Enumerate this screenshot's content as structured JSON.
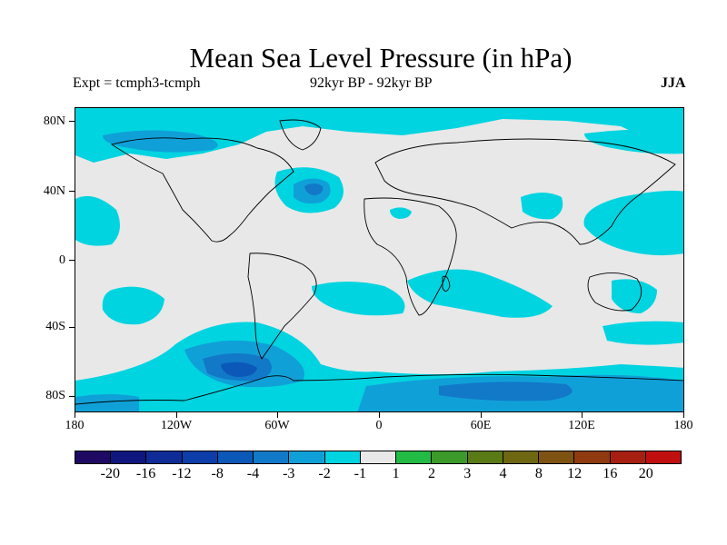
{
  "header": {
    "title": "Mean Sea Level Pressure (in hPa)",
    "expt": "Expt = tcmph3-tcmph",
    "period": "92kyr BP - 92kyr BP",
    "season": "JJA"
  },
  "axes": {
    "y_labels": [
      "80N",
      "40N",
      "0",
      "40S",
      "80S"
    ],
    "x_labels": [
      "180",
      "120W",
      "60W",
      "0",
      "60E",
      "120E",
      "180"
    ]
  },
  "colorbar": {
    "colors": [
      "#1f0a63",
      "#0f167d",
      "#0e2b96",
      "#0c3da8",
      "#0b58b8",
      "#1278c8",
      "#10a0d8",
      "#00d4e0",
      "#e8e8e8",
      "#22bb44",
      "#3c9a2a",
      "#5a7a16",
      "#6e6611",
      "#7e5210",
      "#8f3a10",
      "#a61f10",
      "#c00f0f"
    ],
    "labels": [
      "-20",
      "-16",
      "-12",
      "-8",
      "-4",
      "-3",
      "-2",
      "-1",
      "1",
      "2",
      "3",
      "4",
      "8",
      "12",
      "16",
      "20"
    ]
  },
  "map": {
    "background": "#e8e8e8",
    "anomaly_light": "#00d4e0",
    "anomaly_mid": "#10a0d8",
    "anomaly_deep": "#1278c8",
    "anomaly_deepest": "#0b58b8",
    "coast": "#000000"
  }
}
